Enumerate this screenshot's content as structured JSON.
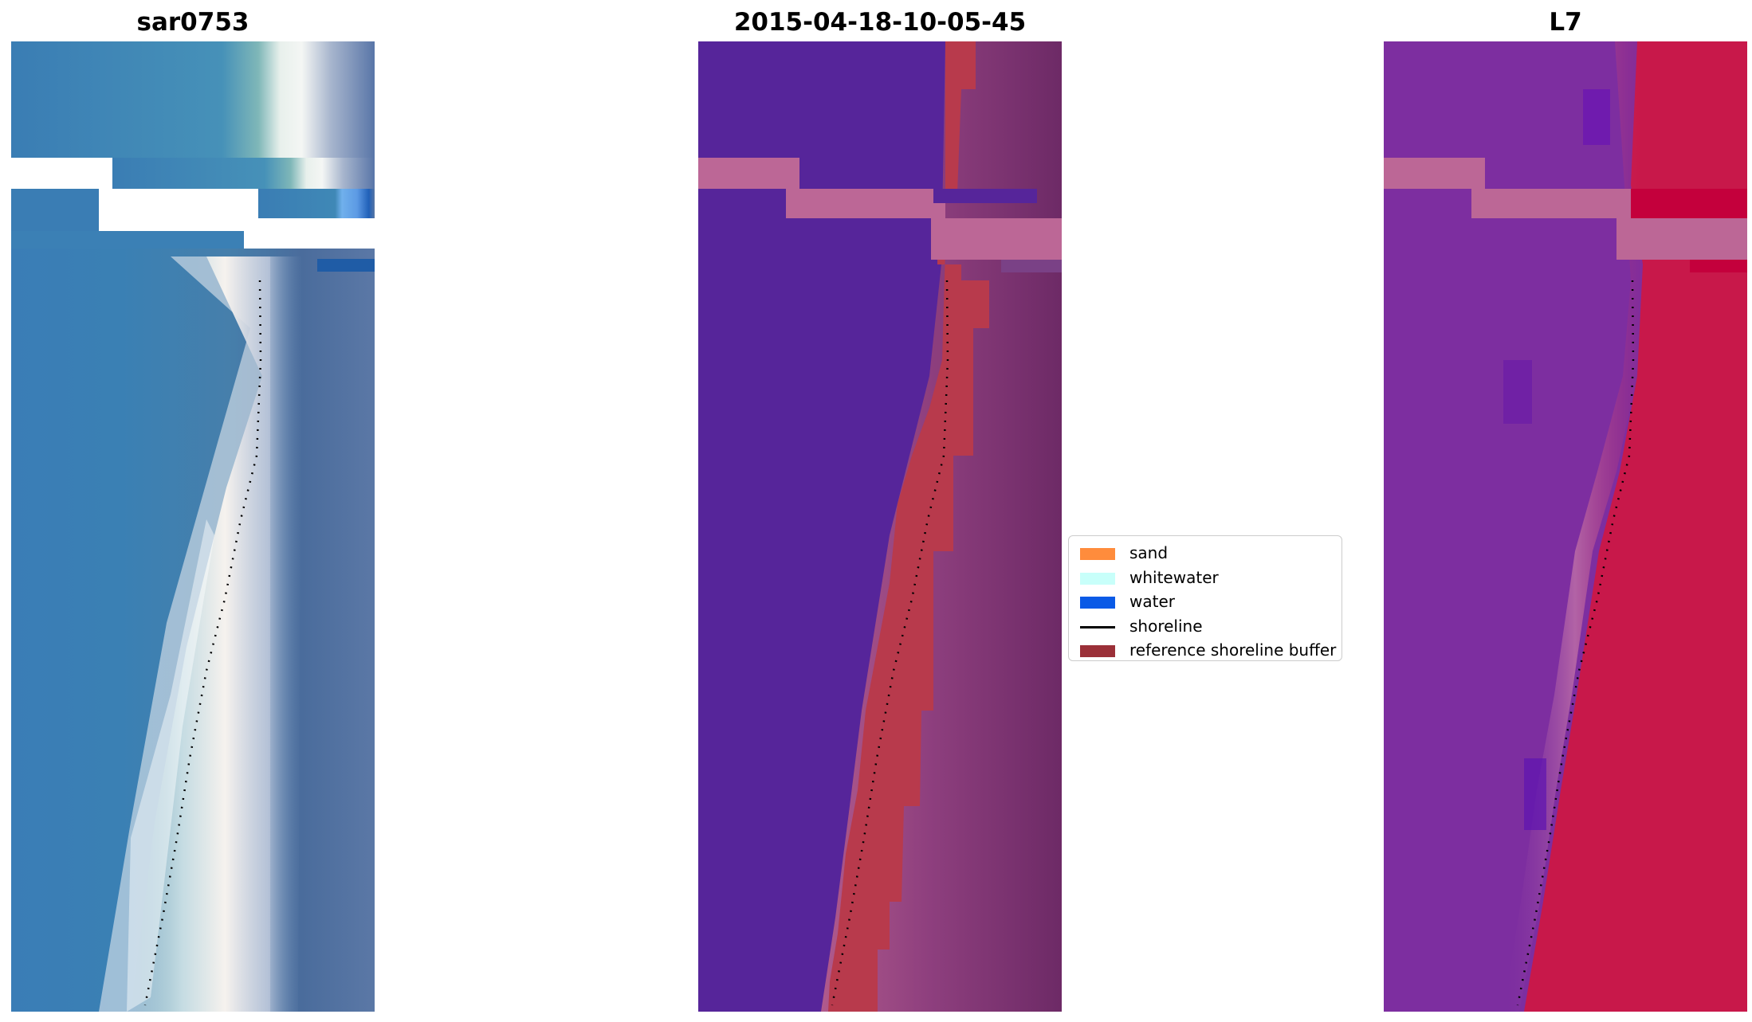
{
  "panels": [
    {
      "title": "sar0753"
    },
    {
      "title": "2015-04-18-10-05-45"
    },
    {
      "title": "L7"
    }
  ],
  "legend": {
    "items": [
      {
        "label": "sand",
        "color": "#ff8c3c"
      },
      {
        "label": "whitewater",
        "color": "#c8fffa"
      },
      {
        "label": "water",
        "color": "#0a5ae6"
      },
      {
        "label": "shoreline",
        "color": "#000000",
        "kind": "line"
      },
      {
        "label": "reference shoreline buffer",
        "color": "#9b3038"
      }
    ]
  },
  "colors": {
    "rgb_water": "#3f7fb6",
    "classified_water": "#56259a",
    "buffer": "#b83a4c",
    "nodata": "#bc6796",
    "l7_water": "#7d2ea0",
    "l7_land": "#c8184a"
  }
}
